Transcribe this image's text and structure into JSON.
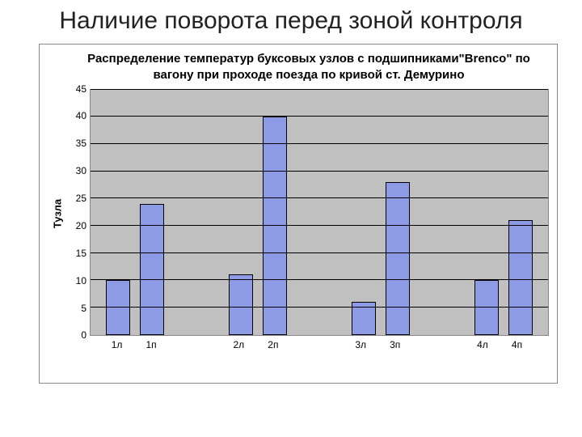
{
  "slide_title": "Наличие поворота перед зоной контроля",
  "chart": {
    "type": "bar",
    "title": "Распределение температур буксовых узлов с подшипниками\"Brenco\" по вагону при проходе поезда по кривой ст. Демурино",
    "ylabel": "Тузла",
    "ylim_max": 45,
    "ytick_step": 5,
    "yticks": [
      "45",
      "40",
      "35",
      "30",
      "25",
      "20",
      "15",
      "10",
      "5",
      "0"
    ],
    "bar_color": "#8d9be6",
    "bar_border": "#000000",
    "plot_bg": "#c0c0c0",
    "grid_color": "#000000",
    "groups": [
      {
        "pairs": [
          {
            "label": "1л",
            "value": 10
          },
          {
            "label": "1п",
            "value": 24
          }
        ]
      },
      {
        "pairs": [
          {
            "label": "2л",
            "value": 11
          },
          {
            "label": "2п",
            "value": 40
          }
        ]
      },
      {
        "pairs": [
          {
            "label": "3л",
            "value": 6
          },
          {
            "label": "3п",
            "value": 28
          }
        ]
      },
      {
        "pairs": [
          {
            "label": "4л",
            "value": 10
          },
          {
            "label": "4п",
            "value": 21
          }
        ]
      }
    ]
  }
}
